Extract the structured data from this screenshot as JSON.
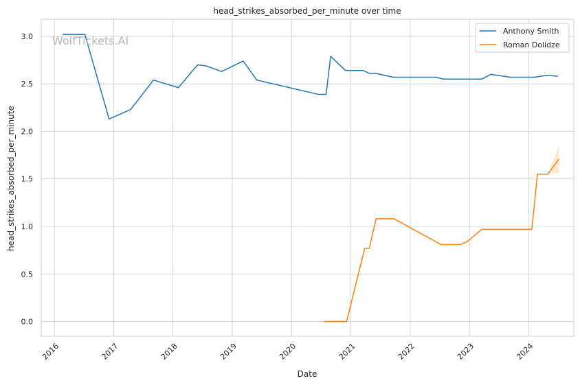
{
  "chart_data": {
    "type": "line",
    "title": "head_strikes_absorbed_per_minute over time",
    "xlabel": "Date",
    "ylabel": "head_strikes_absorbed_per_minute",
    "watermark": "WolfTickets.AI",
    "xlim": [
      "2015-10-12",
      "2024-10-05"
    ],
    "ylim": [
      -0.155,
      3.18
    ],
    "x_ticks": [
      "2016",
      "2017",
      "2018",
      "2019",
      "2020",
      "2021",
      "2022",
      "2023",
      "2024"
    ],
    "y_ticks": [
      "0.0",
      "0.5",
      "1.0",
      "1.5",
      "2.0",
      "2.5",
      "3.0"
    ],
    "grid": true,
    "legend_position": "top-right",
    "series": [
      {
        "name": "Anthony Smith",
        "color": "#1f77b4",
        "points": [
          [
            "2016-02-21",
            3.02
          ],
          [
            "2016-07-07",
            3.02
          ],
          [
            "2016-12-03",
            2.13
          ],
          [
            "2017-04-15",
            2.23
          ],
          [
            "2017-09-02",
            2.54
          ],
          [
            "2018-02-03",
            2.46
          ],
          [
            "2018-06-01",
            2.7
          ],
          [
            "2018-07-22",
            2.69
          ],
          [
            "2018-10-27",
            2.63
          ],
          [
            "2019-03-09",
            2.74
          ],
          [
            "2019-06-01",
            2.54
          ],
          [
            "2020-06-13",
            2.39
          ],
          [
            "2020-08-01",
            2.39
          ],
          [
            "2020-08-29",
            2.79
          ],
          [
            "2020-11-28",
            2.64
          ],
          [
            "2021-03-20",
            2.64
          ],
          [
            "2021-04-24",
            2.61
          ],
          [
            "2021-06-05",
            2.61
          ],
          [
            "2021-09-18",
            2.57
          ],
          [
            "2022-06-11",
            2.57
          ],
          [
            "2022-07-23",
            2.55
          ],
          [
            "2023-03-18",
            2.55
          ],
          [
            "2023-05-13",
            2.6
          ],
          [
            "2023-09-09",
            2.57
          ],
          [
            "2024-02-03",
            2.57
          ],
          [
            "2024-04-27",
            2.59
          ],
          [
            "2024-06-29",
            2.58
          ]
        ]
      },
      {
        "name": "Roman Dolidze",
        "color": "#ff7f0e",
        "points": [
          [
            "2020-07-18",
            0.0
          ],
          [
            "2020-12-05",
            0.0
          ],
          [
            "2021-03-27",
            0.77
          ],
          [
            "2021-04-24",
            0.77
          ],
          [
            "2021-06-05",
            1.08
          ],
          [
            "2021-09-25",
            1.08
          ],
          [
            "2022-07-09",
            0.81
          ],
          [
            "2022-11-05",
            0.81
          ],
          [
            "2022-12-17",
            0.84
          ],
          [
            "2023-03-18",
            0.97
          ],
          [
            "2024-01-20",
            0.97
          ],
          [
            "2024-02-24",
            1.55
          ],
          [
            "2024-04-27",
            1.55
          ],
          [
            "2024-07-06",
            1.71
          ]
        ],
        "band": [
          [
            "2024-02-24",
            1.55,
            1.55
          ],
          [
            "2024-04-27",
            1.55,
            1.55
          ],
          [
            "2024-07-06",
            1.56,
            1.86
          ]
        ]
      }
    ]
  }
}
